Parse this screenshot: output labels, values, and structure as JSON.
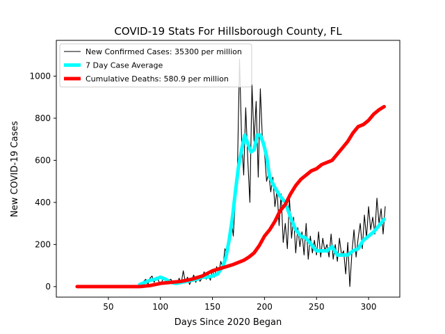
{
  "chart_data": {
    "type": "line",
    "title": "COVID-19 Stats For Hillsborough County, FL",
    "xlabel": "Days Since 2020 Began",
    "ylabel": "New COVID-19 Cases",
    "xlim": [
      0,
      330
    ],
    "ylim": [
      -50,
      1170
    ],
    "xticks": [
      50,
      100,
      150,
      200,
      250,
      300
    ],
    "yticks": [
      0,
      200,
      400,
      600,
      800,
      1000
    ],
    "grid": false,
    "legend_position": "top-left",
    "series": [
      {
        "name": "New Confirmed Cases: 35300 per million",
        "color": "#000000",
        "style": "thin",
        "x": [
          80,
          82,
          84,
          86,
          88,
          90,
          92,
          94,
          96,
          98,
          100,
          102,
          104,
          106,
          108,
          110,
          112,
          114,
          116,
          118,
          120,
          122,
          124,
          126,
          128,
          130,
          132,
          134,
          136,
          138,
          140,
          142,
          144,
          146,
          148,
          150,
          152,
          154,
          156,
          158,
          160,
          162,
          164,
          166,
          168,
          170,
          172,
          174,
          176,
          178,
          180,
          182,
          184,
          186,
          188,
          190,
          192,
          194,
          196,
          198,
          200,
          202,
          204,
          206,
          208,
          210,
          212,
          214,
          216,
          218,
          220,
          222,
          224,
          226,
          228,
          230,
          232,
          234,
          236,
          238,
          240,
          242,
          244,
          246,
          248,
          250,
          252,
          254,
          256,
          258,
          260,
          262,
          264,
          266,
          268,
          270,
          272,
          274,
          276,
          278,
          280,
          282,
          284,
          286,
          288,
          290,
          292,
          294,
          296,
          298,
          300,
          302,
          304,
          306,
          308,
          310,
          312,
          314,
          316
        ],
        "values": [
          15,
          5,
          25,
          35,
          10,
          40,
          50,
          20,
          45,
          30,
          10,
          30,
          40,
          15,
          30,
          35,
          20,
          25,
          10,
          40,
          15,
          75,
          20,
          45,
          10,
          30,
          55,
          20,
          50,
          25,
          40,
          70,
          35,
          55,
          30,
          80,
          45,
          95,
          60,
          120,
          90,
          180,
          150,
          220,
          330,
          240,
          420,
          560,
          1080,
          700,
          530,
          850,
          600,
          400,
          960,
          690,
          880,
          520,
          940,
          700,
          640,
          500,
          540,
          450,
          520,
          380,
          460,
          290,
          440,
          210,
          300,
          180,
          420,
          230,
          330,
          160,
          280,
          190,
          260,
          150,
          300,
          130,
          240,
          160,
          220,
          150,
          260,
          140,
          230,
          170,
          200,
          140,
          250,
          130,
          200,
          120,
          230,
          150,
          170,
          60,
          210,
          0,
          160,
          270,
          140,
          230,
          300,
          180,
          340,
          230,
          380,
          270,
          330,
          250,
          420,
          300,
          370,
          250,
          380
        ]
      },
      {
        "name": "7 Day Case Average",
        "color": "#00ffff",
        "style": "thick",
        "x": [
          80,
          85,
          90,
          95,
          100,
          105,
          110,
          115,
          120,
          125,
          130,
          135,
          140,
          145,
          150,
          155,
          160,
          163,
          166,
          169,
          172,
          175,
          178,
          181,
          184,
          187,
          190,
          193,
          196,
          199,
          202,
          205,
          210,
          215,
          220,
          225,
          230,
          235,
          240,
          245,
          250,
          255,
          260,
          265,
          270,
          275,
          280,
          285,
          290,
          295,
          300,
          305,
          310,
          315
        ],
        "values": [
          10,
          20,
          30,
          35,
          45,
          35,
          20,
          15,
          20,
          25,
          30,
          35,
          45,
          45,
          50,
          60,
          95,
          140,
          220,
          320,
          450,
          570,
          650,
          720,
          680,
          640,
          650,
          720,
          720,
          680,
          620,
          520,
          470,
          430,
          400,
          330,
          270,
          240,
          230,
          200,
          170,
          170,
          170,
          190,
          150,
          150,
          150,
          170,
          180,
          220,
          240,
          260,
          290,
          320
        ]
      },
      {
        "name": "Cumulative Deaths: 580.9 per million",
        "color": "#ff0000",
        "style": "thick",
        "x": [
          20,
          40,
          60,
          80,
          90,
          100,
          110,
          120,
          130,
          140,
          150,
          160,
          170,
          180,
          185,
          190,
          195,
          200,
          205,
          210,
          215,
          220,
          225,
          230,
          235,
          240,
          245,
          250,
          255,
          260,
          265,
          270,
          275,
          280,
          285,
          290,
          295,
          300,
          305,
          310,
          315
        ],
        "values": [
          0,
          0,
          0,
          0,
          5,
          15,
          20,
          25,
          35,
          50,
          75,
          90,
          105,
          125,
          140,
          160,
          195,
          240,
          270,
          310,
          360,
          390,
          440,
          480,
          510,
          530,
          550,
          560,
          580,
          590,
          600,
          630,
          660,
          690,
          730,
          760,
          770,
          790,
          820,
          840,
          855
        ]
      }
    ]
  }
}
